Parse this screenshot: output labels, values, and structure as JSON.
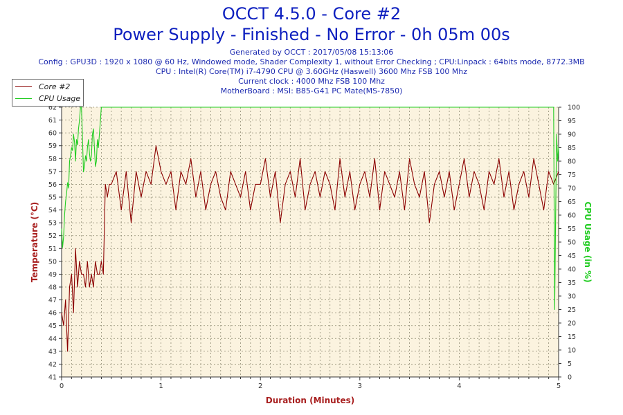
{
  "header": {
    "title": "OCCT 4.5.0 - Core #2",
    "subtitle": "Power Supply - Finished - No Error - 0h 05m 00s",
    "generated": "Generated by OCCT : 2017/05/08 15:13:06",
    "config": "Config : GPU3D : 1920 x 1080 @ 60 Hz, Windowed mode, Shader Complexity 1, without Error Checking ; CPU:Linpack : 64bits mode, 8772.3MB",
    "cpu": "CPU : Intel(R) Core(TM) i7-4790 CPU @ 3.60GHz (Haswell) 3600 Mhz FSB 100 Mhz",
    "clock": "Current clock : 4000 Mhz FSB 100 Mhz",
    "motherboard": "MotherBoard : MSI: B85-G41 PC Mate(MS-7850)"
  },
  "colors": {
    "temperature": "#8b0000",
    "cpu_usage": "#22cc22",
    "plot_bg": "#fbf3df",
    "grid": "#8e8a72",
    "title": "#0d1fbf",
    "axis_label_left": "#a81f1f",
    "axis_label_bottom": "#a81f1f",
    "axis_label_right": "#22cc22"
  },
  "legend": {
    "items": [
      {
        "label": "Core #2",
        "color": "#8b0000"
      },
      {
        "label": "CPU Usage",
        "color": "#22cc22"
      }
    ]
  },
  "chart_data": {
    "type": "line",
    "xlabel": "Duration (Minutes)",
    "ylabel": "Temperature (°C)",
    "y2label": "CPU Usage (in %)",
    "xlim": [
      0,
      5
    ],
    "ylim": [
      41,
      62
    ],
    "y2lim": [
      0,
      100
    ],
    "x_ticks": [
      "0",
      "1",
      "2",
      "3",
      "4",
      "5"
    ],
    "y_ticks": [
      "41",
      "42",
      "43",
      "44",
      "45",
      "46",
      "47",
      "48",
      "49",
      "50",
      "51",
      "52",
      "53",
      "54",
      "55",
      "56",
      "57",
      "58",
      "59",
      "60",
      "61",
      "62"
    ],
    "y2_ticks": [
      "0",
      "5",
      "10",
      "15",
      "20",
      "25",
      "30",
      "35",
      "40",
      "45",
      "50",
      "55",
      "60",
      "65",
      "70",
      "75",
      "80",
      "85",
      "90",
      "95",
      "100"
    ],
    "series": [
      {
        "name": "Core #2",
        "axis": "left",
        "x": [
          0.0,
          0.02,
          0.04,
          0.06,
          0.08,
          0.1,
          0.12,
          0.14,
          0.16,
          0.18,
          0.2,
          0.22,
          0.24,
          0.26,
          0.28,
          0.3,
          0.32,
          0.34,
          0.36,
          0.38,
          0.4,
          0.42,
          0.44,
          0.46,
          0.48,
          0.5,
          0.55,
          0.6,
          0.65,
          0.7,
          0.75,
          0.8,
          0.85,
          0.9,
          0.95,
          1.0,
          1.05,
          1.1,
          1.15,
          1.2,
          1.25,
          1.3,
          1.35,
          1.4,
          1.45,
          1.5,
          1.55,
          1.6,
          1.65,
          1.7,
          1.75,
          1.8,
          1.85,
          1.9,
          1.95,
          2.0,
          2.05,
          2.1,
          2.15,
          2.2,
          2.25,
          2.3,
          2.35,
          2.4,
          2.45,
          2.5,
          2.55,
          2.6,
          2.65,
          2.7,
          2.75,
          2.8,
          2.85,
          2.9,
          2.95,
          3.0,
          3.05,
          3.1,
          3.15,
          3.2,
          3.25,
          3.3,
          3.35,
          3.4,
          3.45,
          3.5,
          3.55,
          3.6,
          3.65,
          3.7,
          3.75,
          3.8,
          3.85,
          3.9,
          3.95,
          4.0,
          4.05,
          4.1,
          4.15,
          4.2,
          4.25,
          4.3,
          4.35,
          4.4,
          4.45,
          4.5,
          4.55,
          4.6,
          4.65,
          4.7,
          4.75,
          4.8,
          4.85,
          4.9,
          4.95,
          5.0
        ],
        "values": [
          46,
          45,
          47,
          43,
          48,
          49,
          46,
          51,
          48,
          50,
          49,
          49,
          48,
          50,
          48,
          49,
          48,
          50,
          49,
          49,
          50,
          49,
          56,
          55,
          56,
          56,
          57,
          54,
          57,
          53,
          57,
          55,
          57,
          56,
          59,
          57,
          56,
          57,
          54,
          57,
          56,
          58,
          55,
          57,
          54,
          56,
          57,
          55,
          54,
          57,
          56,
          55,
          57,
          54,
          56,
          56,
          58,
          55,
          57,
          53,
          56,
          57,
          55,
          58,
          54,
          56,
          57,
          55,
          57,
          56,
          54,
          58,
          55,
          57,
          54,
          56,
          57,
          55,
          58,
          54,
          57,
          56,
          55,
          57,
          54,
          58,
          56,
          55,
          57,
          53,
          56,
          57,
          55,
          57,
          54,
          56,
          58,
          55,
          57,
          56,
          54,
          57,
          56,
          58,
          55,
          57,
          54,
          56,
          57,
          55,
          58,
          56,
          54,
          57,
          56,
          57
        ]
      },
      {
        "name": "CPU Usage",
        "axis": "right",
        "x": [
          0.0,
          0.01,
          0.02,
          0.03,
          0.04,
          0.05,
          0.06,
          0.07,
          0.08,
          0.09,
          0.1,
          0.11,
          0.12,
          0.13,
          0.14,
          0.15,
          0.16,
          0.17,
          0.18,
          0.19,
          0.2,
          0.21,
          0.22,
          0.23,
          0.24,
          0.25,
          0.26,
          0.27,
          0.28,
          0.29,
          0.3,
          0.31,
          0.32,
          0.33,
          0.34,
          0.35,
          0.36,
          0.37,
          0.38,
          0.39,
          0.4,
          0.41,
          0.42,
          0.5,
          1.0,
          2.0,
          3.0,
          4.0,
          4.9,
          4.95,
          4.96,
          4.97,
          4.98,
          4.99,
          5.0
        ],
        "values": [
          55,
          48,
          52,
          60,
          65,
          68,
          72,
          70,
          80,
          82,
          85,
          84,
          90,
          87,
          80,
          88,
          86,
          92,
          95,
          100,
          100,
          88,
          76,
          78,
          82,
          80,
          85,
          88,
          83,
          80,
          82,
          90,
          92,
          85,
          78,
          80,
          88,
          85,
          90,
          95,
          100,
          100,
          100,
          100,
          100,
          100,
          100,
          100,
          100,
          100,
          25,
          60,
          90,
          80,
          85
        ]
      }
    ]
  }
}
